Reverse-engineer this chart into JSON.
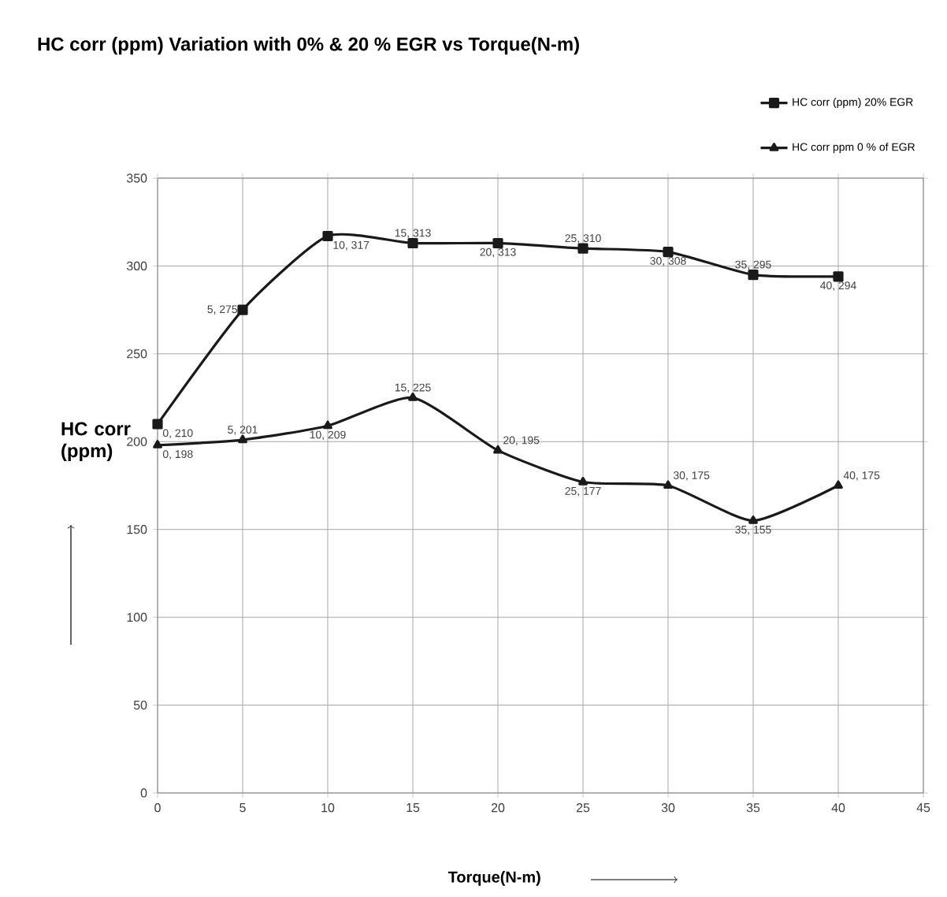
{
  "chart_data": {
    "type": "line",
    "title": "HC corr (ppm) Variation with 0% & 20 % EGR vs Torque(N-m)",
    "xlabel": "Torque(N-m)",
    "ylabel": "HC corr (ppm)",
    "x": [
      0,
      5,
      10,
      15,
      20,
      25,
      30,
      35,
      40
    ],
    "series": [
      {
        "name": "HC corr (ppm) 20% EGR",
        "color": "#1a1a1a",
        "marker": "square",
        "values": [
          210,
          275,
          317,
          313,
          313,
          310,
          308,
          295,
          294
        ],
        "value_labels": [
          "0, 210",
          "5, 275",
          "10, 317",
          "15, 313",
          "20, 313",
          "25, 310",
          "30, 308",
          "35, 295",
          "40, 294"
        ]
      },
      {
        "name": "HC corr ppm 0 % of EGR",
        "color": "#1a1a1a",
        "marker": "triangle",
        "values": [
          198,
          201,
          209,
          225,
          195,
          177,
          175,
          155,
          175
        ],
        "value_labels": [
          "0, 198",
          "5, 201",
          "10, 209",
          "15, 225",
          "20, 195",
          "25, 177",
          "30, 175",
          "35, 155",
          "40, 175"
        ]
      }
    ],
    "xlim": [
      0,
      45
    ],
    "xticks": [
      0,
      5,
      10,
      15,
      20,
      25,
      30,
      35,
      40,
      45
    ],
    "ylim": [
      0,
      350
    ],
    "yticks": [
      0,
      50,
      100,
      150,
      200,
      250,
      300,
      350
    ],
    "grid": true,
    "legend": "top right",
    "line_style": "solid"
  }
}
